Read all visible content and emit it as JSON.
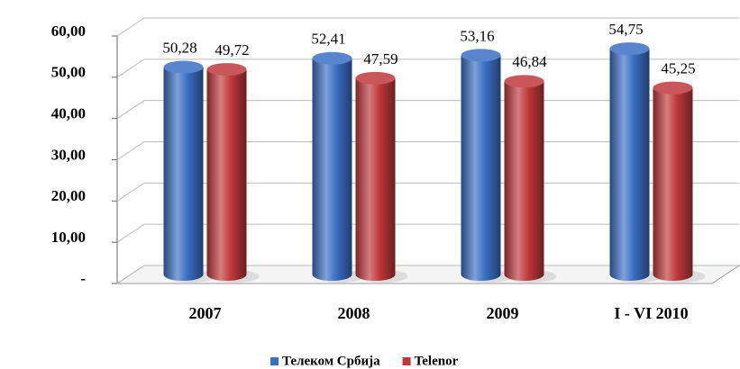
{
  "chart_data": {
    "type": "bar3d",
    "categories": [
      "2007",
      "2008",
      "2009",
      "I - VI 2010"
    ],
    "series": [
      {
        "name": "Телеком Србија",
        "color": "#3a6fc4",
        "values": [
          50.28,
          52.41,
          53.16,
          54.75
        ],
        "value_labels": [
          "50,28",
          "52,41",
          "53,16",
          "54,75"
        ]
      },
      {
        "name": "Telenor",
        "color": "#c0383a",
        "values": [
          49.72,
          47.59,
          46.84,
          45.25
        ],
        "value_labels": [
          "49,72",
          "47,59",
          "46,84",
          "45,25"
        ]
      }
    ],
    "ylim": [
      0,
      60
    ],
    "yticks": [
      {
        "value": 0,
        "label": "-"
      },
      {
        "value": 10,
        "label": "10,00"
      },
      {
        "value": 20,
        "label": "20,00"
      },
      {
        "value": 30,
        "label": "30,00"
      },
      {
        "value": 40,
        "label": "40,00"
      },
      {
        "value": 50,
        "label": "50,00"
      },
      {
        "value": 60,
        "label": "60,00"
      }
    ],
    "grid": true,
    "legend": "bottom"
  }
}
